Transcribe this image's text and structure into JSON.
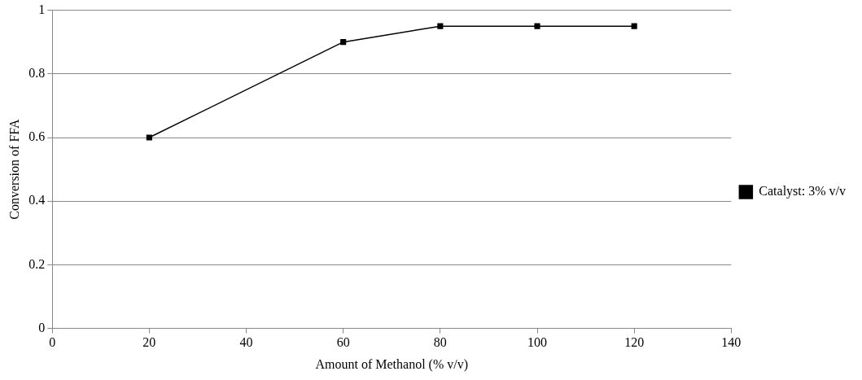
{
  "chart_data": {
    "type": "line",
    "xlabel": "Amount of Methanol (% v/v)",
    "ylabel": "Conversion of FFA",
    "x": [
      20,
      60,
      80,
      100,
      120
    ],
    "series": [
      {
        "name": "Catalyst: 3% v/v",
        "color": "#000000",
        "values": [
          0.6,
          0.9,
          0.95,
          0.95,
          0.95
        ]
      }
    ],
    "xlim": [
      0,
      140
    ],
    "xticks": [
      0,
      20,
      40,
      60,
      80,
      100,
      120,
      140
    ],
    "ylim": [
      0,
      1
    ],
    "yticks": [
      0,
      0.2,
      0.4,
      0.6,
      0.8,
      1
    ],
    "grid": "y",
    "legend": "right",
    "marker": "square",
    "line_style": "solid"
  }
}
